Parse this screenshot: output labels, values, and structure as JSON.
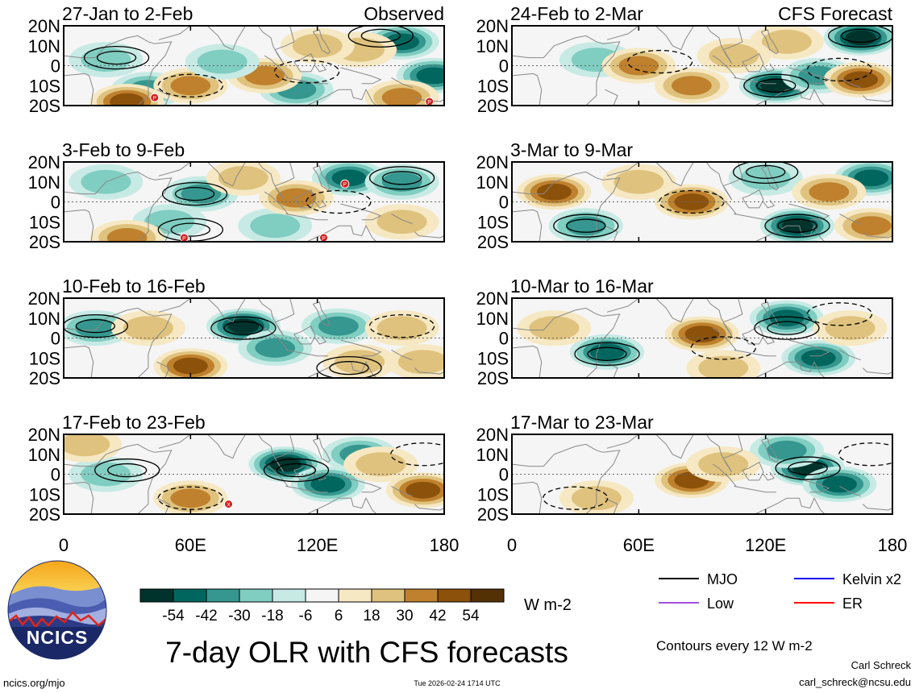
{
  "title": "7-day OLR with CFS forecasts",
  "logo": {
    "text": "NCICS"
  },
  "footer": {
    "url": "ncics.org/mjo",
    "timestamp": "Tue 2026-02-24 1714 UTC",
    "author": "Carl Schreck",
    "email": "carl_schreck@ncsu.edu"
  },
  "colorbar": {
    "unit": "W m-2",
    "ticks": [
      "-54",
      "-42",
      "-30",
      "-18",
      "-6",
      "6",
      "18",
      "30",
      "42",
      "54"
    ],
    "colors": [
      "#00332b",
      "#01665e",
      "#35978f",
      "#80cdc1",
      "#c7eae5",
      "#f5f5f5",
      "#f6e8c3",
      "#dfc27d",
      "#bf812d",
      "#8c510a",
      "#543005"
    ]
  },
  "legend": {
    "items": [
      {
        "label": "MJO",
        "color": "#000000"
      },
      {
        "label": "Kelvin x2",
        "color": "#0000ff"
      },
      {
        "label": "Low",
        "color": "#a050e0"
      },
      {
        "label": "ER",
        "color": "#ff0000"
      }
    ],
    "contour_note": "Contours every 12 W m-2"
  },
  "chart_data": {
    "type": "heatmap",
    "variable": "OLR anomaly",
    "units": "W m-2",
    "x_range": [
      0,
      180
    ],
    "y_range": [
      -20,
      20
    ],
    "x_ticks": [
      0,
      60,
      120,
      180
    ],
    "x_tick_labels": [
      "0",
      "60E",
      "120E",
      "180"
    ],
    "y_tick_labels": [
      "20N",
      "10N",
      "0",
      "10S",
      "20S"
    ],
    "contour_interval": 12,
    "panels": [
      {
        "label": "27-Jan to 2-Feb",
        "tag": "Observed",
        "column": "left",
        "row": 0,
        "blobs": [
          {
            "lon": 160,
            "lat": 12,
            "value": -45
          },
          {
            "lon": 175,
            "lat": -5,
            "value": -40
          },
          {
            "lon": 110,
            "lat": -12,
            "value": -30
          },
          {
            "lon": 40,
            "lat": -12,
            "value": -30
          },
          {
            "lon": 20,
            "lat": 3,
            "value": -25
          },
          {
            "lon": 140,
            "lat": 8,
            "value": 25
          },
          {
            "lon": 95,
            "lat": -5,
            "value": 35
          },
          {
            "lon": 60,
            "lat": -10,
            "value": 30
          },
          {
            "lon": 30,
            "lat": -18,
            "value": 40
          },
          {
            "lon": 160,
            "lat": -16,
            "value": 35
          },
          {
            "lon": 120,
            "lat": 10,
            "value": 20
          },
          {
            "lon": 75,
            "lat": 2,
            "value": -15
          }
        ],
        "contours": [
          {
            "lon": 150,
            "lat": 15,
            "type": "MJO",
            "sign": -1
          },
          {
            "lon": 25,
            "lat": 4,
            "type": "MJO",
            "sign": -1
          },
          {
            "lon": 115,
            "lat": -3,
            "type": "MJO",
            "sign": 1
          },
          {
            "lon": 60,
            "lat": -10,
            "type": "MJO",
            "sign": 1
          }
        ],
        "markers": [
          {
            "lon": 43,
            "lat": -16,
            "label": "P"
          },
          {
            "lon": 173,
            "lat": -18,
            "label": "P"
          }
        ]
      },
      {
        "label": "3-Feb to 9-Feb",
        "tag": "",
        "column": "left",
        "row": 1,
        "blobs": [
          {
            "lon": 135,
            "lat": 12,
            "value": -45
          },
          {
            "lon": 160,
            "lat": 10,
            "value": -30
          },
          {
            "lon": 65,
            "lat": 4,
            "value": -30
          },
          {
            "lon": 20,
            "lat": 10,
            "value": -25
          },
          {
            "lon": 50,
            "lat": -10,
            "value": -20
          },
          {
            "lon": 100,
            "lat": -12,
            "value": -25
          },
          {
            "lon": 110,
            "lat": 2,
            "value": 30
          },
          {
            "lon": 160,
            "lat": -10,
            "value": 25
          },
          {
            "lon": 30,
            "lat": -18,
            "value": 30
          },
          {
            "lon": 85,
            "lat": 12,
            "value": 20
          }
        ],
        "contours": [
          {
            "lon": 62,
            "lat": 4,
            "type": "MJO",
            "sign": -1
          },
          {
            "lon": 160,
            "lat": 12,
            "type": "MJO",
            "sign": -1
          },
          {
            "lon": 130,
            "lat": 0,
            "type": "MJO",
            "sign": 1
          },
          {
            "lon": 60,
            "lat": -14,
            "type": "MJO",
            "sign": -1
          }
        ],
        "markers": [
          {
            "lon": 133,
            "lat": 9,
            "label": "P"
          },
          {
            "lon": 57,
            "lat": -18,
            "label": "P"
          },
          {
            "lon": 123,
            "lat": -18,
            "label": "P"
          }
        ]
      },
      {
        "label": "10-Feb to 16-Feb",
        "tag": "",
        "column": "left",
        "row": 2,
        "blobs": [
          {
            "lon": 85,
            "lat": 6,
            "value": -55
          },
          {
            "lon": 130,
            "lat": 6,
            "value": -35
          },
          {
            "lon": 15,
            "lat": 5,
            "value": -30
          },
          {
            "lon": 100,
            "lat": -5,
            "value": -30
          },
          {
            "lon": 60,
            "lat": -14,
            "value": 40
          },
          {
            "lon": 40,
            "lat": 5,
            "value": 20
          },
          {
            "lon": 160,
            "lat": 5,
            "value": 20
          },
          {
            "lon": 170,
            "lat": -12,
            "value": 25
          },
          {
            "lon": 140,
            "lat": -12,
            "value": 25
          }
        ],
        "contours": [
          {
            "lon": 85,
            "lat": 5,
            "type": "MJO",
            "sign": -1
          },
          {
            "lon": 15,
            "lat": 6,
            "type": "MJO",
            "sign": -1
          },
          {
            "lon": 160,
            "lat": 6,
            "type": "MJO",
            "sign": 1
          },
          {
            "lon": 135,
            "lat": -15,
            "type": "MJO",
            "sign": -1
          }
        ],
        "markers": []
      },
      {
        "label": "17-Feb to 23-Feb",
        "tag": "",
        "column": "left",
        "row": 3,
        "blobs": [
          {
            "lon": 105,
            "lat": 5,
            "value": -50
          },
          {
            "lon": 125,
            "lat": -5,
            "value": -40
          },
          {
            "lon": 140,
            "lat": 10,
            "value": -30
          },
          {
            "lon": 20,
            "lat": 0,
            "value": -20
          },
          {
            "lon": 170,
            "lat": -8,
            "value": 40
          },
          {
            "lon": 60,
            "lat": -12,
            "value": 30
          },
          {
            "lon": 10,
            "lat": 15,
            "value": 25
          },
          {
            "lon": 150,
            "lat": 5,
            "value": 20
          }
        ],
        "contours": [
          {
            "lon": 110,
            "lat": 2,
            "type": "MJO",
            "sign": -1
          },
          {
            "lon": 30,
            "lat": 2,
            "type": "MJO",
            "sign": -1
          },
          {
            "lon": 170,
            "lat": 10,
            "type": "MJO",
            "sign": 1
          },
          {
            "lon": 60,
            "lat": -12,
            "type": "MJO",
            "sign": 1
          }
        ],
        "markers": [
          {
            "lon": 78,
            "lat": -15,
            "label": "X"
          }
        ]
      },
      {
        "label": "24-Feb to 2-Mar",
        "tag": "CFS Forecast",
        "column": "right",
        "row": 0,
        "blobs": [
          {
            "lon": 165,
            "lat": 14,
            "value": -55
          },
          {
            "lon": 125,
            "lat": -10,
            "value": -50
          },
          {
            "lon": 145,
            "lat": -5,
            "value": -35
          },
          {
            "lon": 40,
            "lat": 3,
            "value": -25
          },
          {
            "lon": 165,
            "lat": -7,
            "value": 45
          },
          {
            "lon": 85,
            "lat": -10,
            "value": 35
          },
          {
            "lon": 60,
            "lat": 0,
            "value": 30
          },
          {
            "lon": 130,
            "lat": 12,
            "value": 25
          },
          {
            "lon": 105,
            "lat": 5,
            "value": 20
          }
        ],
        "contours": [
          {
            "lon": 165,
            "lat": 15,
            "type": "MJO",
            "sign": -1
          },
          {
            "lon": 125,
            "lat": -10,
            "type": "MJO",
            "sign": -1
          },
          {
            "lon": 70,
            "lat": 2,
            "type": "MJO",
            "sign": 1
          },
          {
            "lon": 155,
            "lat": -2,
            "type": "MJO",
            "sign": 1
          }
        ],
        "markers": []
      },
      {
        "label": "3-Mar to 9-Mar",
        "tag": "",
        "column": "right",
        "row": 1,
        "blobs": [
          {
            "lon": 135,
            "lat": -12,
            "value": -55
          },
          {
            "lon": 170,
            "lat": 12,
            "value": -40
          },
          {
            "lon": 35,
            "lat": -12,
            "value": -35
          },
          {
            "lon": 120,
            "lat": 12,
            "value": -25
          },
          {
            "lon": 20,
            "lat": 5,
            "value": 40
          },
          {
            "lon": 85,
            "lat": 0,
            "value": 40
          },
          {
            "lon": 150,
            "lat": 5,
            "value": 30
          },
          {
            "lon": 170,
            "lat": -12,
            "value": 30
          },
          {
            "lon": 60,
            "lat": 10,
            "value": 20
          }
        ],
        "contours": [
          {
            "lon": 135,
            "lat": -12,
            "type": "MJO",
            "sign": -1
          },
          {
            "lon": 35,
            "lat": -12,
            "type": "MJO",
            "sign": -1
          },
          {
            "lon": 120,
            "lat": 15,
            "type": "MJO",
            "sign": -1
          },
          {
            "lon": 85,
            "lat": 0,
            "type": "MJO",
            "sign": 1
          }
        ],
        "markers": []
      },
      {
        "label": "10-Mar to 16-Mar",
        "tag": "",
        "column": "right",
        "row": 2,
        "blobs": [
          {
            "lon": 130,
            "lat": 10,
            "value": -45
          },
          {
            "lon": 145,
            "lat": -10,
            "value": -40
          },
          {
            "lon": 45,
            "lat": -7,
            "value": -40
          },
          {
            "lon": 90,
            "lat": 2,
            "value": 40
          },
          {
            "lon": 20,
            "lat": 5,
            "value": 20
          },
          {
            "lon": 160,
            "lat": 5,
            "value": 25
          },
          {
            "lon": 100,
            "lat": -15,
            "value": 25
          }
        ],
        "contours": [
          {
            "lon": 130,
            "lat": 5,
            "type": "MJO",
            "sign": -1
          },
          {
            "lon": 45,
            "lat": -8,
            "type": "MJO",
            "sign": -1
          },
          {
            "lon": 155,
            "lat": 12,
            "type": "MJO",
            "sign": 1
          },
          {
            "lon": 100,
            "lat": -5,
            "type": "MJO",
            "sign": 1
          }
        ],
        "markers": []
      },
      {
        "label": "17-Mar to 23-Mar",
        "tag": "",
        "column": "right",
        "row": 3,
        "blobs": [
          {
            "lon": 140,
            "lat": 3,
            "value": -55
          },
          {
            "lon": 155,
            "lat": -5,
            "value": -40
          },
          {
            "lon": 130,
            "lat": 12,
            "value": -35
          },
          {
            "lon": 85,
            "lat": -3,
            "value": 40
          },
          {
            "lon": 40,
            "lat": -12,
            "value": 20
          },
          {
            "lon": 100,
            "lat": 5,
            "value": 20
          }
        ],
        "contours": [
          {
            "lon": 140,
            "lat": 3,
            "type": "MJO",
            "sign": -1
          },
          {
            "lon": 170,
            "lat": 10,
            "type": "MJO",
            "sign": 1
          },
          {
            "lon": 30,
            "lat": -12,
            "type": "MJO",
            "sign": 1
          }
        ],
        "markers": []
      }
    ]
  }
}
